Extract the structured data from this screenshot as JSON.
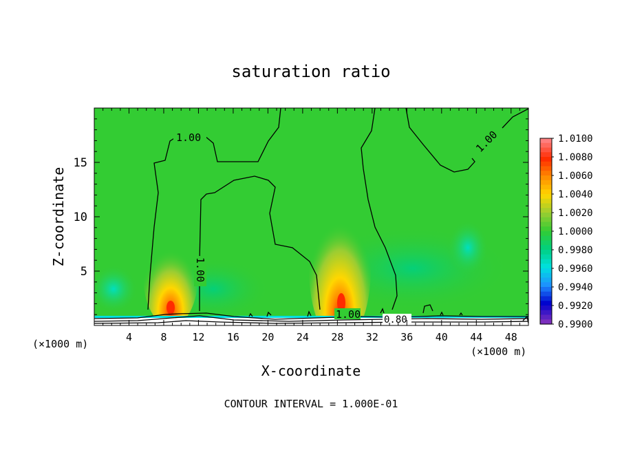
{
  "chart_data": {
    "type": "heatmap",
    "title": "saturation ratio",
    "xlabel": "X-coordinate",
    "ylabel": "Z-coordinate",
    "x_unit_left": "(×1000 m)",
    "x_unit_right": "(×1000 m)",
    "footer": "CONTOUR INTERVAL = 1.000E-01",
    "xlim": [
      0,
      50
    ],
    "ylim": [
      0,
      20
    ],
    "x_ticks": [
      "4",
      "8",
      "12",
      "16",
      "20",
      "24",
      "28",
      "32",
      "36",
      "40",
      "44",
      "48"
    ],
    "y_ticks": [
      "5",
      "10",
      "15"
    ],
    "colorbar": {
      "labels": [
        "1.0100",
        "1.0080",
        "1.0060",
        "1.0040",
        "1.0020",
        "1.0000",
        "0.9980",
        "0.9960",
        "0.9940",
        "0.9920",
        "0.9900"
      ],
      "colors": [
        "#ff7f7f",
        "#ff2a00",
        "#ff8c00",
        "#ffd700",
        "#9acd32",
        "#33cc33",
        "#00d080",
        "#00e0e0",
        "#1e90ff",
        "#0000cd",
        "#7b2fbe"
      ]
    },
    "contour_labels": [
      {
        "text": "1.00",
        "x": 10.5,
        "z": 17.3
      },
      {
        "text": "1.00",
        "x": 11.8,
        "z": 5.0
      },
      {
        "text": "1.00",
        "x": 45.0,
        "z": 17.0
      },
      {
        "text": "1.00",
        "x": 29.0,
        "z": 1.0
      },
      {
        "text": "0.80",
        "x": 34.7,
        "z": 0.6
      }
    ],
    "hotspots": [
      {
        "x": 8.8,
        "z": 1.2,
        "value": 1.0075
      },
      {
        "x": 28.6,
        "z": 1.5,
        "value": 1.0072
      }
    ],
    "background_value": 1.0,
    "grid": false,
    "legend": "right colorbar"
  }
}
